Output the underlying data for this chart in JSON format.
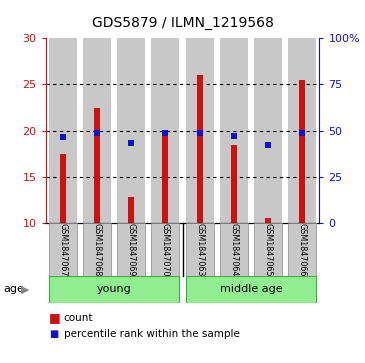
{
  "title": "GDS5879 / ILMN_1219568",
  "samples": [
    "GSM1847067",
    "GSM1847068",
    "GSM1847069",
    "GSM1847070",
    "GSM1847063",
    "GSM1847064",
    "GSM1847065",
    "GSM1847066"
  ],
  "count_values": [
    17.5,
    22.5,
    12.8,
    19.8,
    26.0,
    18.5,
    10.6,
    25.5
  ],
  "percentile_values": [
    46.5,
    48.5,
    43.5,
    48.5,
    49.0,
    47.0,
    42.0,
    49.0
  ],
  "bar_bottom": 10,
  "ylim_left": [
    10,
    30
  ],
  "ylim_right": [
    0,
    100
  ],
  "yticks_left": [
    10,
    15,
    20,
    25,
    30
  ],
  "yticks_right": [
    0,
    25,
    50,
    75,
    100
  ],
  "yticklabels_right": [
    "0",
    "25",
    "50",
    "75",
    "100%"
  ],
  "bar_color": "#cc1111",
  "dot_color": "#1111cc",
  "bar_bg_color": "#c8c8c8",
  "left_tick_color": "#cc1111",
  "right_tick_color": "#1111cc",
  "group_color": "#90EE90",
  "group_line_color": "#44aa44"
}
